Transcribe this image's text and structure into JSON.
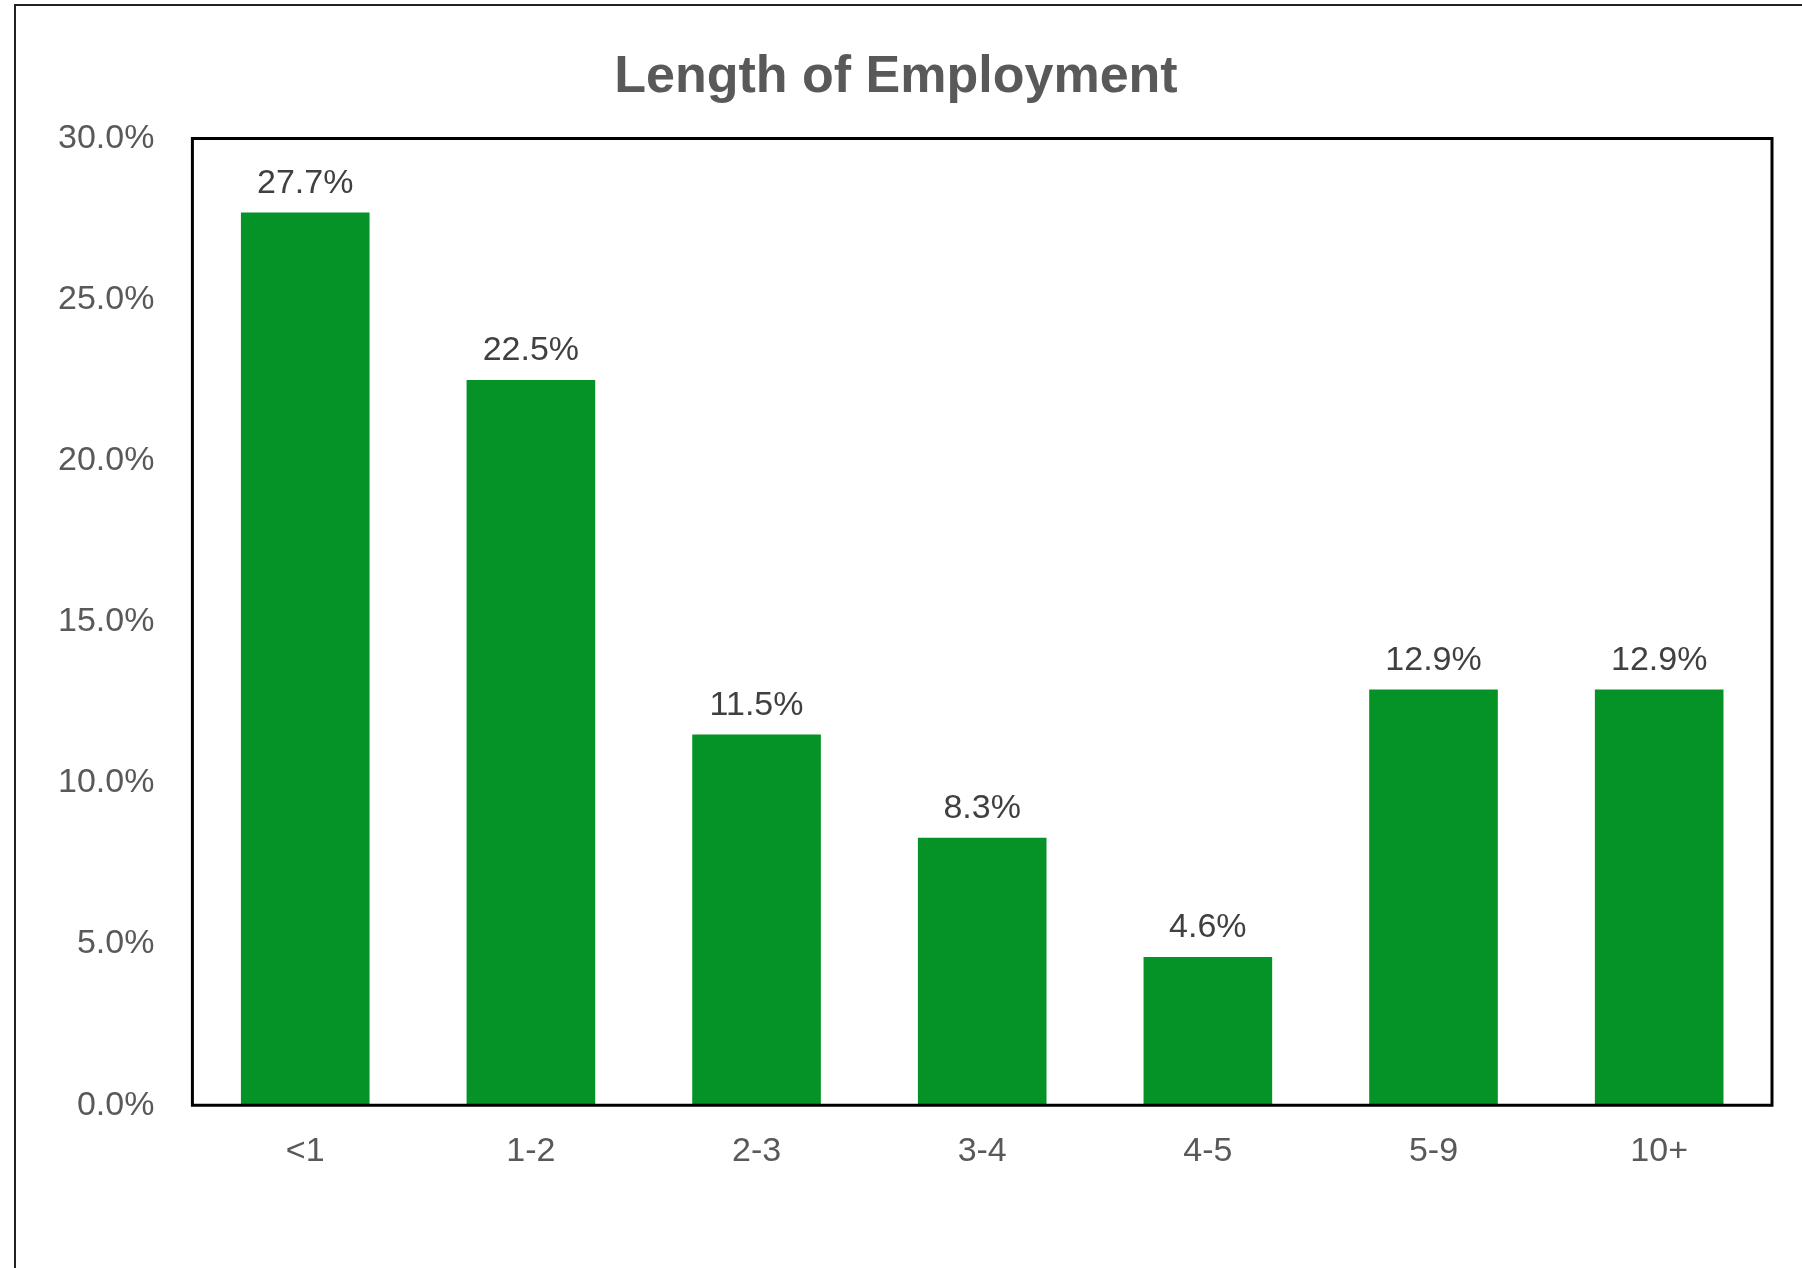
{
  "chart_data": {
    "type": "bar",
    "title": "Length of Employment",
    "categories": [
      "<1",
      "1-2",
      "2-3",
      "3-4",
      "4-5",
      "5-9",
      "10+"
    ],
    "values": [
      27.7,
      22.5,
      11.5,
      8.3,
      4.6,
      12.9,
      12.9
    ],
    "value_labels": [
      "27.7%",
      "22.5%",
      "11.5%",
      "8.3%",
      "4.6%",
      "12.9%",
      "12.9%"
    ],
    "color": "#059226",
    "ylim": [
      0,
      30
    ],
    "yticks": [
      {
        "value": 0,
        "label": "0.0%"
      },
      {
        "value": 5,
        "label": "5.0%"
      },
      {
        "value": 10,
        "label": "10.0%"
      },
      {
        "value": 15,
        "label": "15.0%"
      },
      {
        "value": 20,
        "label": "20.0%"
      },
      {
        "value": 25,
        "label": "25.0%"
      },
      {
        "value": 30,
        "label": "30.0%"
      }
    ],
    "grid": false,
    "legend": false
  }
}
